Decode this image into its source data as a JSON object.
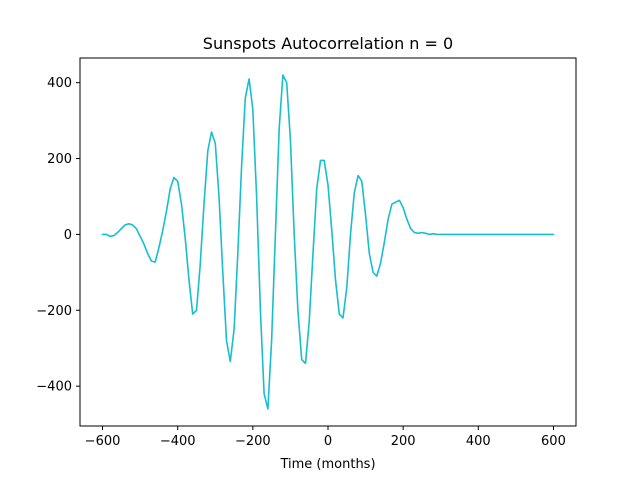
{
  "chart_data": {
    "type": "line",
    "title": "Sunspots Autocorrelation n = 0",
    "xlabel": "Time (months)",
    "ylabel": "",
    "xlim": [
      -660,
      660
    ],
    "ylim": [
      -505,
      465
    ],
    "xticks": [
      -600,
      -400,
      -200,
      0,
      200,
      400,
      600
    ],
    "yticks": [
      -400,
      -200,
      0,
      200,
      400
    ],
    "xtick_labels": [
      "−600",
      "−400",
      "−200",
      "0",
      "200",
      "400",
      "600"
    ],
    "ytick_labels": [
      "−400",
      "−200",
      "0",
      "200",
      "400"
    ],
    "grid": false,
    "series": [
      {
        "color": "#17becf",
        "x": [
          -600,
          -590,
          -580,
          -570,
          -560,
          -550,
          -540,
          -530,
          -520,
          -510,
          -500,
          -490,
          -480,
          -470,
          -460,
          -450,
          -440,
          -430,
          -420,
          -410,
          -400,
          -390,
          -380,
          -370,
          -360,
          -350,
          -340,
          -330,
          -320,
          -310,
          -300,
          -290,
          -280,
          -270,
          -260,
          -250,
          -240,
          -230,
          -220,
          -210,
          -200,
          -190,
          -180,
          -170,
          -160,
          -150,
          -140,
          -130,
          -120,
          -110,
          -100,
          -90,
          -80,
          -70,
          -60,
          -50,
          -40,
          -30,
          -20,
          -10,
          0,
          10,
          20,
          30,
          40,
          50,
          60,
          70,
          80,
          90,
          100,
          110,
          120,
          130,
          140,
          150,
          160,
          170,
          180,
          190,
          200,
          210,
          220,
          230,
          240,
          250,
          260,
          270,
          280,
          290,
          300,
          310,
          320,
          330,
          340,
          350,
          360,
          370,
          380,
          390,
          400,
          410,
          420,
          430,
          440,
          450,
          460,
          470,
          480,
          490,
          500,
          510,
          520,
          530,
          540,
          550,
          560,
          570,
          580,
          590,
          600
        ],
        "values": [
          0,
          0,
          -5,
          -3,
          5,
          15,
          25,
          28,
          25,
          15,
          -5,
          -25,
          -50,
          -70,
          -73,
          -35,
          10,
          60,
          120,
          150,
          140,
          80,
          -10,
          -120,
          -210,
          -200,
          -80,
          80,
          220,
          270,
          240,
          100,
          -100,
          -280,
          -335,
          -250,
          -50,
          180,
          360,
          410,
          330,
          100,
          -200,
          -420,
          -460,
          -280,
          0,
          280,
          420,
          400,
          250,
          0,
          -200,
          -330,
          -340,
          -230,
          -50,
          120,
          195,
          195,
          130,
          10,
          -120,
          -210,
          -220,
          -140,
          0,
          110,
          155,
          140,
          50,
          -50,
          -100,
          -110,
          -75,
          -20,
          40,
          80,
          85,
          90,
          70,
          40,
          15,
          5,
          3,
          5,
          3,
          0,
          2,
          0,
          0,
          0,
          0,
          0,
          0,
          0,
          0,
          0,
          0,
          0,
          0,
          0,
          0,
          0,
          0,
          0,
          0,
          0,
          0,
          0,
          0,
          0,
          0,
          0,
          0,
          0,
          0,
          0,
          0,
          0,
          0
        ]
      }
    ]
  }
}
